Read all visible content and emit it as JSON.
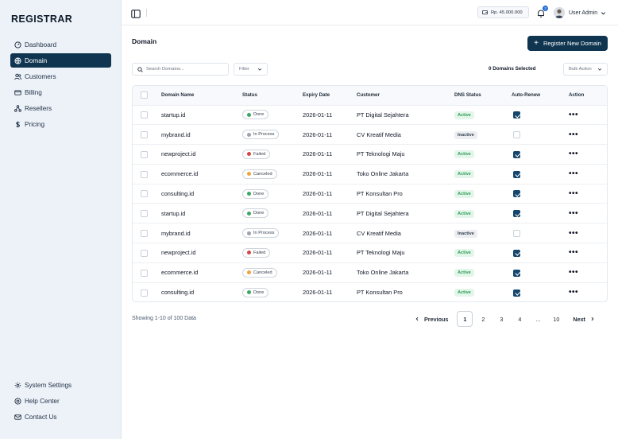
{
  "app": {
    "logo": "REGISTRAR"
  },
  "sidebar": {
    "items": [
      {
        "label": "Dashboard",
        "icon": "gauge-icon",
        "active": false
      },
      {
        "label": "Domain",
        "icon": "globe-icon",
        "active": true
      },
      {
        "label": "Customers",
        "icon": "users-icon",
        "active": false
      },
      {
        "label": "Billing",
        "icon": "card-icon",
        "active": false
      },
      {
        "label": "Resellers",
        "icon": "network-icon",
        "active": false
      },
      {
        "label": "Pricing",
        "icon": "dollar-icon",
        "active": false
      }
    ],
    "bottom_items": [
      {
        "label": "System Settings",
        "icon": "gear-icon"
      },
      {
        "label": "Help Center",
        "icon": "help-icon"
      },
      {
        "label": "Contact Us",
        "icon": "mail-icon"
      }
    ]
  },
  "topbar": {
    "balance": "Rp. 45.000.000",
    "notification_count": "3",
    "user_name": "User Admin"
  },
  "main": {
    "title": "Domain",
    "register_button": "Register New Domain",
    "search_placeholder": "Search Domains...",
    "filter_label": "Filter",
    "selected_count": "0 Domains Selected",
    "bulk_action_label": "Bulk Action"
  },
  "table": {
    "headers": [
      "Domain Name",
      "Status",
      "Expiry Date",
      "Customer",
      "DNS Status",
      "Auto-Renew",
      "Action"
    ],
    "rows": [
      {
        "domain": "startup.id",
        "status": "Done",
        "expiry": "2026-01-11",
        "customer": "PT Digital Sejahtera",
        "dns": "Active",
        "auto_renew": true
      },
      {
        "domain": "mybrand.id",
        "status": "In Process",
        "expiry": "2026-01-11",
        "customer": "CV Kreatif Media",
        "dns": "Inactive",
        "auto_renew": false
      },
      {
        "domain": "newproject.id",
        "status": "Failed",
        "expiry": "2026-01-11",
        "customer": "PT Teknologi Maju",
        "dns": "Active",
        "auto_renew": true
      },
      {
        "domain": "ecommerce.id",
        "status": "Canceled",
        "expiry": "2026-01-11",
        "customer": "Toko Online Jakarta",
        "dns": "Active",
        "auto_renew": true
      },
      {
        "domain": "consulting.id",
        "status": "Done",
        "expiry": "2026-01-11",
        "customer": "PT Konsultan Pro",
        "dns": "Active",
        "auto_renew": true
      },
      {
        "domain": "startup.id",
        "status": "Done",
        "expiry": "2026-01-11",
        "customer": "PT Digital Sejahtera",
        "dns": "Active",
        "auto_renew": true
      },
      {
        "domain": "mybrand.id",
        "status": "In Process",
        "expiry": "2026-01-11",
        "customer": "CV Kreatif Media",
        "dns": "Inactive",
        "auto_renew": false
      },
      {
        "domain": "newproject.id",
        "status": "Failed",
        "expiry": "2026-01-11",
        "customer": "PT Teknologi Maju",
        "dns": "Active",
        "auto_renew": true
      },
      {
        "domain": "ecommerce.id",
        "status": "Canceled",
        "expiry": "2026-01-11",
        "customer": "Toko Online Jakarta",
        "dns": "Active",
        "auto_renew": true
      },
      {
        "domain": "consulting.id",
        "status": "Done",
        "expiry": "2026-01-11",
        "customer": "PT Konsultan Pro",
        "dns": "Active",
        "auto_renew": true
      }
    ],
    "status_colors": {
      "Done": "#3aa865",
      "In Process": "#9ca3af",
      "Failed": "#d64545",
      "Canceled": "#f0a33a"
    }
  },
  "footer": {
    "showing": "Showing 1-10 of 100 Data",
    "prev_label": "Previous",
    "next_label": "Next",
    "pages": [
      "1",
      "2",
      "3",
      "4",
      "...",
      "10"
    ],
    "current_page": "1"
  },
  "colors": {
    "primary": "#0f3550",
    "sidebar_bg": "#edf2f8"
  }
}
